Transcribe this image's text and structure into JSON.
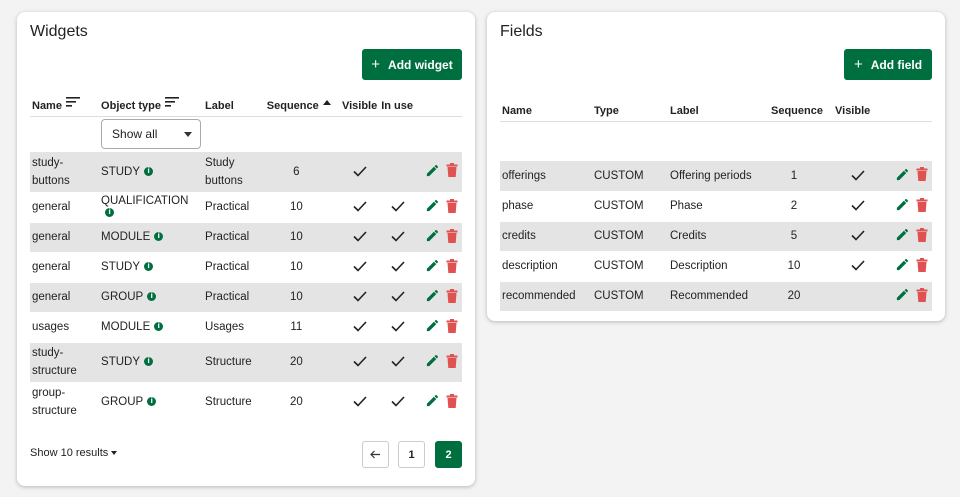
{
  "widgets": {
    "title": "Widgets",
    "add_button": "Add widget",
    "columns": {
      "name": "Name",
      "object_type": "Object type",
      "label": "Label",
      "sequence": "Sequence",
      "visible": "Visible",
      "in_use": "In use"
    },
    "filter_value": "Show all",
    "rows": [
      {
        "name": "study-buttons",
        "object_type": "STUDY",
        "label": "Study buttons",
        "sequence": "6",
        "visible": true,
        "in_use": false
      },
      {
        "name": "general",
        "object_type": "QUALIFICATION",
        "label": "Practical",
        "sequence": "10",
        "visible": true,
        "in_use": true
      },
      {
        "name": "general",
        "object_type": "MODULE",
        "label": "Practical",
        "sequence": "10",
        "visible": true,
        "in_use": true
      },
      {
        "name": "general",
        "object_type": "STUDY",
        "label": "Practical",
        "sequence": "10",
        "visible": true,
        "in_use": true
      },
      {
        "name": "general",
        "object_type": "GROUP",
        "label": "Practical",
        "sequence": "10",
        "visible": true,
        "in_use": true
      },
      {
        "name": "usages",
        "object_type": "MODULE",
        "label": "Usages",
        "sequence": "11",
        "visible": true,
        "in_use": true
      },
      {
        "name": "study-structure",
        "object_type": "STUDY",
        "label": "Structure",
        "sequence": "20",
        "visible": true,
        "in_use": true
      },
      {
        "name": "group-structure",
        "object_type": "GROUP",
        "label": "Structure",
        "sequence": "20",
        "visible": true,
        "in_use": true
      }
    ],
    "show_results": "Show 10 results",
    "pages": [
      "1",
      "2"
    ],
    "active_page": "2"
  },
  "fields": {
    "title": "Fields",
    "add_button": "Add field",
    "columns": {
      "name": "Name",
      "type": "Type",
      "label": "Label",
      "sequence": "Sequence",
      "visible": "Visible"
    },
    "rows": [
      {
        "name": "offerings",
        "type": "CUSTOM",
        "label": "Offering periods",
        "sequence": "1",
        "visible": true
      },
      {
        "name": "phase",
        "type": "CUSTOM",
        "label": "Phase",
        "sequence": "2",
        "visible": true
      },
      {
        "name": "credits",
        "type": "CUSTOM",
        "label": "Credits",
        "sequence": "5",
        "visible": true
      },
      {
        "name": "description",
        "type": "CUSTOM",
        "label": "Description",
        "sequence": "10",
        "visible": true
      },
      {
        "name": "recommended",
        "type": "CUSTOM",
        "label": "Recommended",
        "sequence": "20",
        "visible": false
      }
    ]
  },
  "colors": {
    "accent": "#006f3f",
    "delete": "#e05252",
    "row_shade": "#e4e4e4"
  },
  "icons": {
    "edit": "pencil-icon",
    "delete": "trash-icon",
    "info": "info-icon",
    "check": "check-icon",
    "sort": "sort-icon",
    "prev": "arrow-left-icon"
  }
}
